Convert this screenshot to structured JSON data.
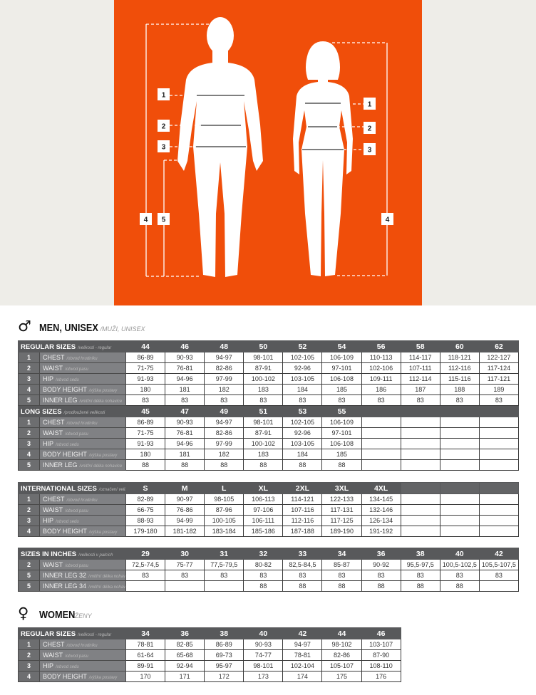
{
  "colors": {
    "accent": "#f04e0a",
    "header": "#58595b",
    "number_cell": "#6d6e70",
    "label_cell": "#808184",
    "background_top": "#eeede8"
  },
  "figure": {
    "man_labels": [
      "1",
      "2",
      "3",
      "4",
      "5"
    ],
    "woman_labels": [
      "1",
      "2",
      "3",
      "4"
    ]
  },
  "men": {
    "symbol": "♂",
    "title": "MEN, UNISEX",
    "subtitle": "/MUŽI, UNISEX"
  },
  "women": {
    "symbol": "♀",
    "title": "WOMEN",
    "subtitle": "/ŽENY"
  },
  "tables": [
    {
      "cols": 10,
      "blocks": [
        {
          "title": "REGULAR SIZES",
          "note": "/velikosti - regular",
          "sizes": [
            "44",
            "46",
            "48",
            "50",
            "52",
            "54",
            "56",
            "58",
            "60",
            "62"
          ],
          "rows": [
            {
              "num": "1",
              "label": "CHEST",
              "note": "/obvod hrudníku",
              "values": [
                "86-89",
                "90-93",
                "94-97",
                "98-101",
                "102-105",
                "106-109",
                "110-113",
                "114-117",
                "118-121",
                "122-127"
              ]
            },
            {
              "num": "2",
              "label": "WAIST",
              "note": "/obvod pasu",
              "values": [
                "71-75",
                "76-81",
                "82-86",
                "87-91",
                "92-96",
                "97-101",
                "102-106",
                "107-111",
                "112-116",
                "117-124"
              ]
            },
            {
              "num": "3",
              "label": "HIP",
              "note": "/obvod sedu",
              "values": [
                "91-93",
                "94-96",
                "97-99",
                "100-102",
                "103-105",
                "106-108",
                "109-111",
                "112-114",
                "115-116",
                "117-121"
              ]
            },
            {
              "num": "4",
              "label": "BODY HEIGHT",
              "note": "/výška postavy",
              "values": [
                "180",
                "181",
                "182",
                "183",
                "184",
                "185",
                "186",
                "187",
                "188",
                "189"
              ]
            },
            {
              "num": "5",
              "label": "INNER LEG",
              "note": "/vnitřní délka nohavice",
              "values": [
                "83",
                "83",
                "83",
                "83",
                "83",
                "83",
                "83",
                "83",
                "83",
                "83"
              ]
            }
          ]
        },
        {
          "title": "LONG SIZES",
          "note": "/prodloužené velikosti",
          "sizes": [
            "45",
            "47",
            "49",
            "51",
            "53",
            "55"
          ],
          "rows": [
            {
              "num": "1",
              "label": "CHEST",
              "note": "/obvod hrudníku",
              "values": [
                "86-89",
                "90-93",
                "94-97",
                "98-101",
                "102-105",
                "106-109"
              ]
            },
            {
              "num": "2",
              "label": "WAIST",
              "note": "/obvod pasu",
              "values": [
                "71-75",
                "76-81",
                "82-86",
                "87-91",
                "92-96",
                "97-101"
              ]
            },
            {
              "num": "3",
              "label": "HIP",
              "note": "/obvod sedu",
              "values": [
                "91-93",
                "94-96",
                "97-99",
                "100-102",
                "103-105",
                "106-108"
              ]
            },
            {
              "num": "4",
              "label": "BODY HEIGHT",
              "note": "/výška postavy",
              "values": [
                "180",
                "181",
                "182",
                "183",
                "184",
                "185"
              ]
            },
            {
              "num": "5",
              "label": "INNER LEG",
              "note": "/vnitřní délka nohavice",
              "values": [
                "88",
                "88",
                "88",
                "88",
                "88",
                "88"
              ]
            }
          ]
        }
      ]
    },
    {
      "cols": 10,
      "blocks": [
        {
          "title": "INTERNATIONAL SIZES",
          "note": "/označení velikostí",
          "sizes": [
            "S",
            "M",
            "L",
            "XL",
            "2XL",
            "3XL",
            "4XL"
          ],
          "rows": [
            {
              "num": "1",
              "label": "CHEST",
              "note": "/obvod hrudníku",
              "values": [
                "82-89",
                "90-97",
                "98-105",
                "106-113",
                "114-121",
                "122-133",
                "134-145"
              ]
            },
            {
              "num": "2",
              "label": "WAIST",
              "note": "/obvod pasu",
              "values": [
                "66-75",
                "76-86",
                "87-96",
                "97-106",
                "107-116",
                "117-131",
                "132-146"
              ]
            },
            {
              "num": "3",
              "label": "HIP",
              "note": "/obvod sedu",
              "values": [
                "88-93",
                "94-99",
                "100-105",
                "106-111",
                "112-116",
                "117-125",
                "126-134"
              ]
            },
            {
              "num": "4",
              "label": "BODY HEIGHT",
              "note": "/výška postavy",
              "values": [
                "179-180",
                "181-182",
                "183-184",
                "185-186",
                "187-188",
                "189-190",
                "191-192"
              ]
            }
          ]
        }
      ]
    },
    {
      "cols": 10,
      "blocks": [
        {
          "title": "SIZES IN INCHES",
          "note": "/velikosti v palcích",
          "sizes": [
            "29",
            "30",
            "31",
            "32",
            "33",
            "34",
            "36",
            "38",
            "40",
            "42"
          ],
          "rows": [
            {
              "num": "2",
              "label": "WAIST",
              "note": "/obvod pasu",
              "values": [
                "72,5-74,5",
                "75-77",
                "77,5-79,5",
                "80-82",
                "82,5-84,5",
                "85-87",
                "90-92",
                "95,5-97,5",
                "100,5-102,5",
                "105,5-107,5"
              ]
            },
            {
              "num": "5",
              "label": "INNER LEG 32",
              "note": "/vnitřní délka nohavice 32",
              "values": [
                "83",
                "83",
                "83",
                "83",
                "83",
                "83",
                "83",
                "83",
                "83",
                "83"
              ]
            },
            {
              "num": "5",
              "label": "INNER LEG 34",
              "note": "/vnitřní délka nohavice 34",
              "values": [
                "",
                "",
                "",
                "88",
                "88",
                "88",
                "88",
                "88",
                "88",
                ""
              ]
            }
          ]
        }
      ]
    },
    {
      "cols": 7,
      "blocks": [
        {
          "title": "REGULAR SIZES",
          "note": "/velikosti - regular",
          "sizes": [
            "34",
            "36",
            "38",
            "40",
            "42",
            "44",
            "46"
          ],
          "rows": [
            {
              "num": "1",
              "label": "CHEST",
              "note": "/obvod hrudníku",
              "values": [
                "78-81",
                "82-85",
                "86-89",
                "90-93",
                "94-97",
                "98-102",
                "103-107"
              ]
            },
            {
              "num": "2",
              "label": "WAIST",
              "note": "/obvod pasu",
              "values": [
                "61-64",
                "65-68",
                "69-73",
                "74-77",
                "78-81",
                "82-86",
                "87-90"
              ]
            },
            {
              "num": "3",
              "label": "HIP",
              "note": "/obvod sedu",
              "values": [
                "89-91",
                "92-94",
                "95-97",
                "98-101",
                "102-104",
                "105-107",
                "108-110"
              ]
            },
            {
              "num": "4",
              "label": "BODY HEIGHT",
              "note": "/výška postavy",
              "values": [
                "170",
                "171",
                "172",
                "173",
                "174",
                "175",
                "176"
              ]
            }
          ]
        }
      ]
    }
  ]
}
